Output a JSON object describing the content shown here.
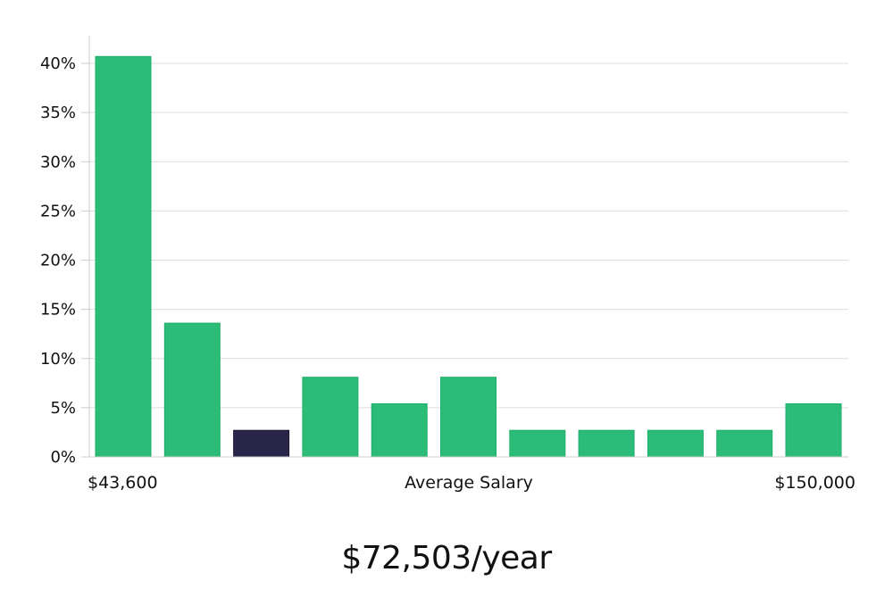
{
  "chart_data": {
    "type": "bar",
    "categories": [
      "1",
      "2",
      "3",
      "4",
      "5",
      "6",
      "7",
      "8",
      "9",
      "10",
      "11"
    ],
    "values": [
      40.7,
      13.6,
      2.7,
      8.1,
      5.4,
      8.1,
      2.7,
      2.7,
      2.7,
      2.7,
      5.4
    ],
    "highlight_index": 2,
    "ylim": [
      0,
      40
    ],
    "y_ticks": [
      "0%",
      "5%",
      "10%",
      "15%",
      "20%",
      "25%",
      "30%",
      "35%",
      "40%"
    ],
    "x_min_label": "$43,600",
    "xlabel": "Average Salary",
    "x_max_label": "$150,000",
    "grid": true,
    "colors": {
      "bar": "#2bbd77",
      "highlight": "#29264a",
      "grid": "#dddddd",
      "axis": "#cccccc"
    }
  },
  "summary": {
    "salary": "$72,503/year"
  }
}
